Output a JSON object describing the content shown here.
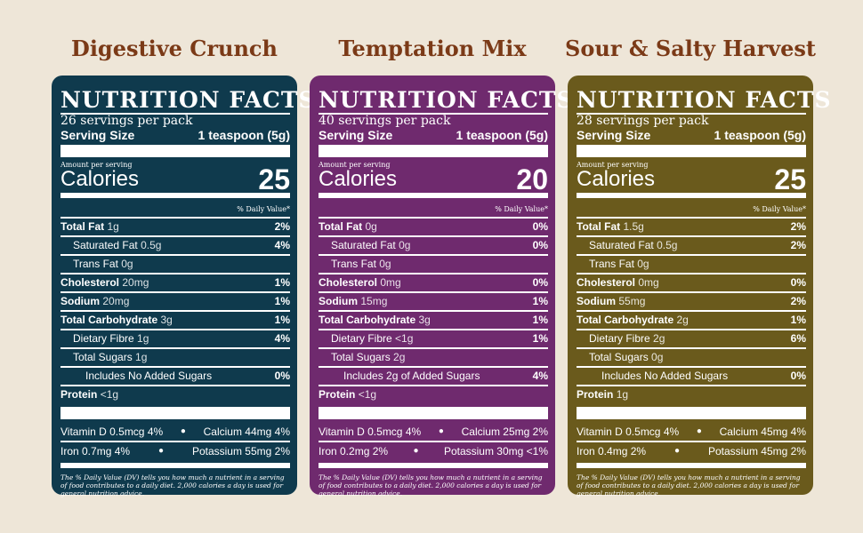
{
  "heading": "NUTRITION FACTS",
  "labels": {
    "serving_size": "Serving Size",
    "amount_per_serving": "Amount per serving",
    "calories": "Calories",
    "daily_value": "% Daily Value*",
    "bullet": "●",
    "footnote": "The % Daily Value (DV) tells you how much a nutrient in a serving of food contributes to a daily diet. 2,000 calories a day is used for general nutrition advice."
  },
  "products": [
    {
      "name": "Digestive Crunch",
      "color": "#0f3a4d",
      "servings": "26 servings per pack",
      "serving_size": "1 teaspoon (5g)",
      "calories": "25",
      "rows": [
        [
          "Total Fat",
          "1g",
          "2%",
          0
        ],
        [
          "Saturated Fat",
          "0.5g",
          "4%",
          1
        ],
        [
          "Trans Fat",
          "0g",
          "",
          1
        ],
        [
          "Cholesterol",
          "20mg",
          "1%",
          0
        ],
        [
          "Sodium",
          "20mg",
          "1%",
          0
        ],
        [
          "Total Carbohydrate",
          "3g",
          "1%",
          0
        ],
        [
          "Dietary Fibre",
          "1g",
          "4%",
          1
        ],
        [
          "Total Sugars",
          "1g",
          "",
          1
        ],
        [
          "Includes No Added Sugars",
          "",
          "0%",
          2
        ],
        [
          "Protein",
          "<1g",
          "",
          0
        ]
      ],
      "minerals": [
        [
          "Vitamin D 0.5mcg 4%",
          "Calcium 44mg 4%"
        ],
        [
          "Iron 0.7mg 4%",
          "Potassium 55mg 2%"
        ]
      ]
    },
    {
      "name": "Temptation Mix",
      "color": "#6f2a6e",
      "servings": "40 servings per pack",
      "serving_size": "1 teaspoon (5g)",
      "calories": "20",
      "rows": [
        [
          "Total Fat",
          "0g",
          "0%",
          0
        ],
        [
          "Saturated Fat",
          "0g",
          "0%",
          1
        ],
        [
          "Trans Fat",
          "0g",
          "",
          1
        ],
        [
          "Cholesterol",
          "0mg",
          "0%",
          0
        ],
        [
          "Sodium",
          "15mg",
          "1%",
          0
        ],
        [
          "Total Carbohydrate",
          "3g",
          "1%",
          0
        ],
        [
          "Dietary Fibre",
          "<1g",
          "1%",
          1
        ],
        [
          "Total Sugars",
          "2g",
          "",
          1
        ],
        [
          "Includes 2g of Added Sugars",
          "",
          "4%",
          2
        ],
        [
          "Protein",
          "<1g",
          "",
          0
        ]
      ],
      "minerals": [
        [
          "Vitamin D 0.5mcg 4%",
          "Calcium 25mg 2%"
        ],
        [
          "Iron 0.2mg 2%",
          "Potassium 30mg <1%"
        ]
      ]
    },
    {
      "name": "Sour & Salty Harvest",
      "color": "#6a5a1c",
      "servings": "28 servings per pack",
      "serving_size": "1 teaspoon (5g)",
      "calories": "25",
      "rows": [
        [
          "Total Fat",
          "1.5g",
          "2%",
          0
        ],
        [
          "Saturated Fat",
          "0.5g",
          "2%",
          1
        ],
        [
          "Trans Fat",
          "0g",
          "",
          1
        ],
        [
          "Cholesterol",
          "0mg",
          "0%",
          0
        ],
        [
          "Sodium",
          "55mg",
          "2%",
          0
        ],
        [
          "Total Carbohydrate",
          "2g",
          "1%",
          0
        ],
        [
          "Dietary Fibre",
          "2g",
          "6%",
          1
        ],
        [
          "Total Sugars",
          "0g",
          "",
          1
        ],
        [
          "Includes No Added Sugars",
          "",
          "0%",
          2
        ],
        [
          "Protein",
          "1g",
          "",
          0
        ]
      ],
      "minerals": [
        [
          "Vitamin D 0.5mcg 4%",
          "Calcium 45mg 4%"
        ],
        [
          "Iron 0.4mg 2%",
          "Potassium 45mg 2%"
        ]
      ]
    }
  ]
}
